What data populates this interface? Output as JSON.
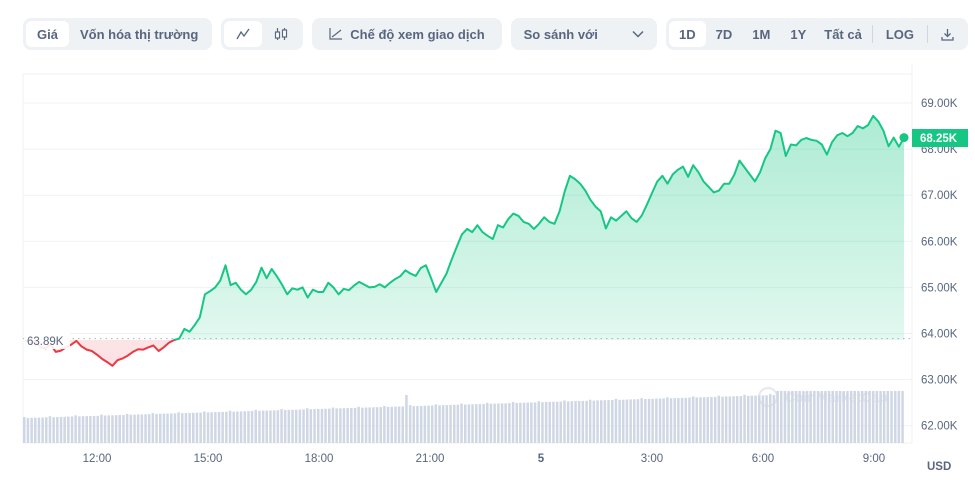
{
  "toolbar": {
    "type_tabs": [
      {
        "label": "Giá",
        "active": true
      },
      {
        "label": "Vốn hóa thị trường",
        "active": false
      }
    ],
    "chart_style": [
      {
        "icon": "line-chart-icon",
        "active": true
      },
      {
        "icon": "candlestick-icon",
        "active": false
      }
    ],
    "trading_view_label": "Chế độ xem giao dịch",
    "compare_label": "So sánh với",
    "ranges": [
      {
        "label": "1D",
        "active": true
      },
      {
        "label": "7D",
        "active": false
      },
      {
        "label": "1M",
        "active": false
      },
      {
        "label": "1Y",
        "active": false
      },
      {
        "label": "Tất cả",
        "active": false
      }
    ],
    "log_label": "LOG",
    "download_icon": "download-icon"
  },
  "colors": {
    "up": "#16c784",
    "down": "#ea3943",
    "volume": "#cfd6e4",
    "axis_text": "#58667e",
    "grid": "#eff2f5"
  },
  "chart_data": {
    "type": "area",
    "title": "",
    "currency_label": "USD",
    "baseline": {
      "label": "63.89K",
      "value": 63890
    },
    "current_price": {
      "label": "68.25K",
      "value": 68250
    },
    "yaxis_ticks": [
      "69.00K",
      "68.00K",
      "67.00K",
      "66.00K",
      "65.00K",
      "64.00K",
      "63.00K",
      "62.00K"
    ],
    "ylim": [
      61800,
      69600
    ],
    "xaxis_ticks": [
      "12:00",
      "15:00",
      "18:00",
      "21:00",
      "5",
      "3:00",
      "6:00",
      "9:00"
    ],
    "watermark": "CoinMarketCap",
    "price_series": [
      63860,
      63780,
      63830,
      63700,
      63680,
      63760,
      63600,
      63630,
      63700,
      63760,
      63840,
      63720,
      63650,
      63620,
      63540,
      63450,
      63380,
      63300,
      63420,
      63460,
      63520,
      63600,
      63660,
      63650,
      63700,
      63740,
      63620,
      63700,
      63800,
      63860,
      63890,
      64100,
      64040,
      64180,
      64350,
      64850,
      64920,
      65000,
      65150,
      65480,
      65050,
      65100,
      64950,
      64850,
      64950,
      65120,
      65430,
      65200,
      65400,
      65240,
      65060,
      64850,
      64980,
      64950,
      65000,
      64780,
      64950,
      64900,
      64900,
      65100,
      65000,
      64850,
      64970,
      64940,
      65040,
      65120,
      65060,
      65000,
      65010,
      65070,
      65000,
      65100,
      65180,
      65240,
      65370,
      65300,
      65250,
      65420,
      65480,
      65200,
      64900,
      65100,
      65300,
      65600,
      65880,
      66150,
      66270,
      66200,
      66350,
      66200,
      66120,
      66050,
      66350,
      66300,
      66480,
      66600,
      66550,
      66420,
      66380,
      66270,
      66380,
      66520,
      66420,
      66380,
      66650,
      67080,
      67420,
      67350,
      67250,
      67100,
      66900,
      66750,
      66650,
      66280,
      66520,
      66450,
      66550,
      66650,
      66500,
      66420,
      66560,
      66800,
      67050,
      67300,
      67420,
      67250,
      67450,
      67550,
      67620,
      67400,
      67650,
      67500,
      67300,
      67180,
      67060,
      67100,
      67250,
      67250,
      67450,
      67750,
      67600,
      67450,
      67300,
      67500,
      67800,
      68000,
      68400,
      68350,
      67850,
      68100,
      68080,
      68200,
      68240,
      68200,
      68180,
      68100,
      67880,
      68150,
      68300,
      68350,
      68280,
      68350,
      68500,
      68450,
      68520,
      68720,
      68600,
      68400,
      68060,
      68250,
      68050,
      68250
    ],
    "volume_note": "Relative volume bars gradually increasing left to right, one spike near 20:30"
  }
}
